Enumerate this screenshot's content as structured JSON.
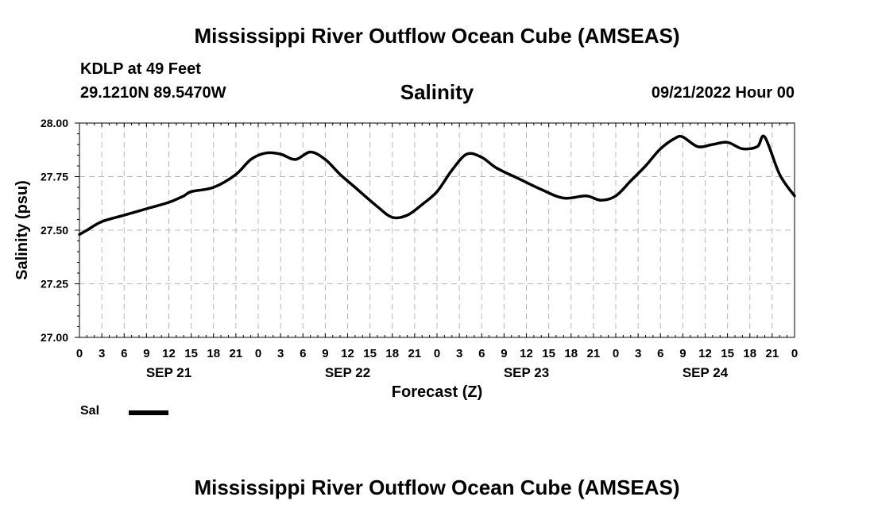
{
  "title": "Mississippi River Outflow Ocean Cube (AMSEAS)",
  "title_repeat": "Mississippi River Outflow Ocean Cube (AMSEAS)",
  "station_label": "KDLP at 49 Feet",
  "coordinates": "29.1210N  89.5470W",
  "chart_heading": "Salinity",
  "datetime": "09/21/2022 Hour 00",
  "chart_data": {
    "type": "line",
    "title": "Salinity",
    "xlabel": "Forecast (Z)",
    "ylabel": "Salinity (psu)",
    "ylim": [
      27.0,
      28.0
    ],
    "xlim": [
      0,
      96
    ],
    "y_ticks": [
      "27.00",
      "27.25",
      "27.50",
      "27.75",
      "28.00"
    ],
    "y_tick_values": [
      27.0,
      27.25,
      27.5,
      27.75,
      28.0
    ],
    "x_tick_labels": [
      "0",
      "3",
      "6",
      "9",
      "12",
      "15",
      "18",
      "21",
      "0",
      "3",
      "6",
      "9",
      "12",
      "15",
      "18",
      "21",
      "0",
      "3",
      "6",
      "9",
      "12",
      "15",
      "18",
      "21",
      "0",
      "3",
      "6",
      "9",
      "12",
      "15",
      "18",
      "21",
      "0"
    ],
    "date_labels": [
      {
        "label": "SEP 21",
        "hour": 12
      },
      {
        "label": "SEP 22",
        "hour": 36
      },
      {
        "label": "SEP 23",
        "hour": 60
      },
      {
        "label": "SEP 24",
        "hour": 84
      }
    ],
    "grid": true,
    "series": [
      {
        "name": "Sal",
        "color": "#000000",
        "x": [
          0,
          1,
          3,
          6,
          9,
          12,
          14,
          15,
          18,
          21,
          23,
          25,
          27,
          29,
          31,
          33,
          35,
          37,
          40,
          42,
          44,
          46,
          48,
          50,
          52,
          54,
          56,
          59,
          62,
          65,
          68,
          70,
          72,
          74,
          76,
          78,
          80,
          81,
          83,
          85,
          87,
          89,
          91,
          92,
          94,
          96
        ],
        "values": [
          27.48,
          27.5,
          27.54,
          27.57,
          27.6,
          27.63,
          27.66,
          27.68,
          27.7,
          27.76,
          27.83,
          27.86,
          27.855,
          27.83,
          27.865,
          27.83,
          27.76,
          27.7,
          27.61,
          27.56,
          27.57,
          27.62,
          27.68,
          27.78,
          27.855,
          27.84,
          27.79,
          27.74,
          27.69,
          27.65,
          27.66,
          27.64,
          27.66,
          27.73,
          27.8,
          27.88,
          27.93,
          27.935,
          27.89,
          27.9,
          27.91,
          27.88,
          27.89,
          27.935,
          27.76,
          27.66
        ]
      }
    ],
    "legend": [
      {
        "label": "Sal"
      }
    ]
  }
}
